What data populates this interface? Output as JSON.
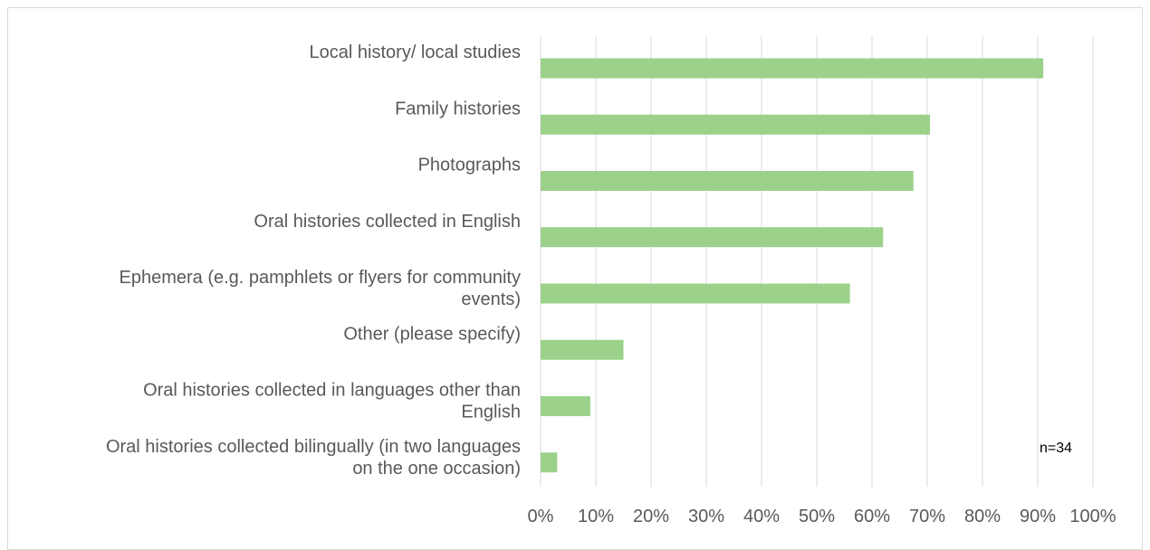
{
  "chart_data": {
    "type": "bar",
    "orientation": "horizontal",
    "categories": [
      [
        "Local history/ local studies"
      ],
      [
        "Family histories"
      ],
      [
        "Photographs"
      ],
      [
        "Oral histories collected in English"
      ],
      [
        "Ephemera (e.g. pamphlets or flyers for community",
        "events)"
      ],
      [
        "Other (please specify)"
      ],
      [
        "Oral histories collected in languages other than",
        "English"
      ],
      [
        "Oral histories collected bilingually (in two languages",
        "on the one occasion)"
      ]
    ],
    "values": [
      91,
      70.5,
      67.5,
      62,
      56,
      15,
      9,
      3
    ],
    "xlim": [
      0,
      100
    ],
    "x_ticks": [
      "0%",
      "10%",
      "20%",
      "30%",
      "40%",
      "50%",
      "60%",
      "70%",
      "80%",
      "90%",
      "100%"
    ],
    "grid": true,
    "bar_color": "#9bd18a",
    "grid_color": "#d9d9d9",
    "annotation": "n=34"
  }
}
